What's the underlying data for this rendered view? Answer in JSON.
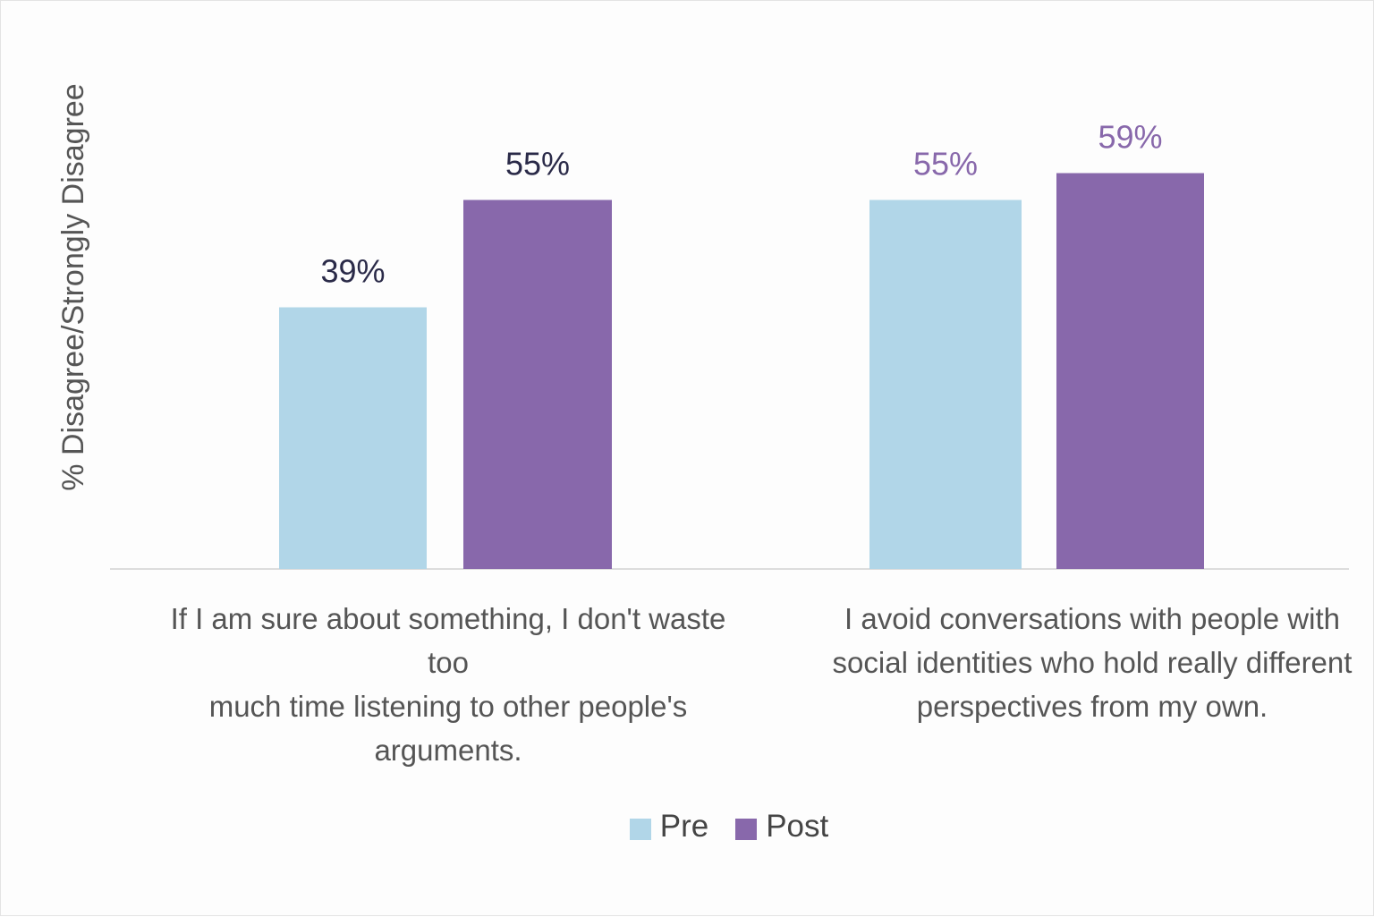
{
  "chart_data": {
    "type": "bar",
    "ylabel": "% Disagree/Strongly Disagree",
    "xlabel": "",
    "ylim": [
      0,
      80
    ],
    "grid": false,
    "legend_position": "bottom",
    "categories": [
      "If I am sure about something, I don't waste too\nmuch time listening to other people's arguments.",
      "I avoid conversations with people with\nsocial identities who hold really different\nperspectives from my own."
    ],
    "series": [
      {
        "name": "Pre",
        "color": "#b1d6e8",
        "values": [
          39,
          55
        ],
        "labels": [
          "39%",
          "55%"
        ]
      },
      {
        "name": "Post",
        "color": "#8868ab",
        "values": [
          55,
          59
        ],
        "labels": [
          "55%",
          "59%"
        ]
      }
    ],
    "data_label_colors": [
      [
        "#2a2a48",
        "#2a2a48"
      ],
      [
        "#8868ab",
        "#8868ab"
      ]
    ]
  }
}
